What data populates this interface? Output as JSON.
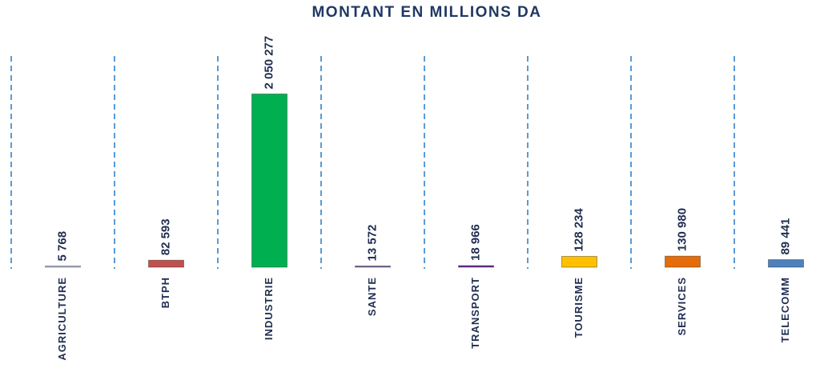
{
  "chart_data": {
    "type": "bar",
    "title": "MONTANT EN MILLIONS DA",
    "categories": [
      "AGRICULTURE",
      "BTPH",
      "INDUSTRIE",
      "SANTE",
      "TRANSPORT",
      "TOURISME",
      "SERVICES",
      "TELECOMM"
    ],
    "values": [
      5768,
      82593,
      2050277,
      13572,
      18966,
      128234,
      130980,
      89441
    ],
    "value_labels": [
      "5 768",
      "82 593",
      "2 050 277",
      "13 572",
      "18 966",
      "128 234",
      "130 980",
      "89 441"
    ],
    "colors": [
      "#b8c4d8",
      "#c0504d",
      "#00b050",
      "#8064a2",
      "#7030a0",
      "#ffc000",
      "#e46c0a",
      "#4f81bd"
    ],
    "ylim": [
      0,
      2500000
    ]
  }
}
